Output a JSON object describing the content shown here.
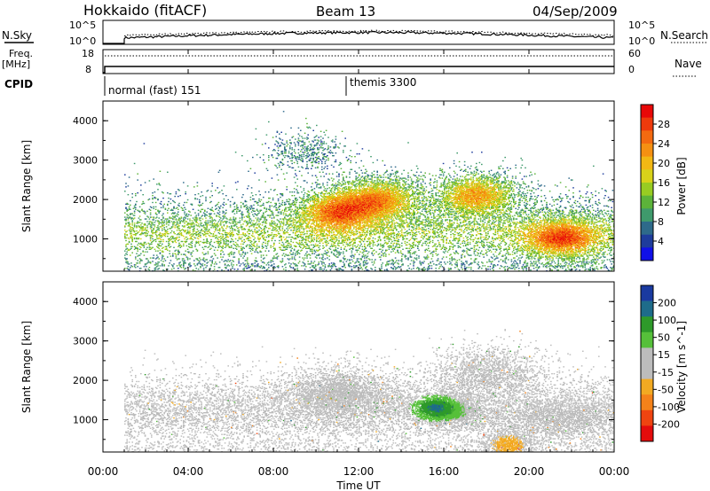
{
  "header": {
    "station": "Hokkaido (fitACF)",
    "beam": "Beam 13",
    "date": "04/Sep/2009"
  },
  "param_panels": {
    "nsky_label": "N.Sky",
    "nsky_ticks": [
      "10^5",
      "10^0"
    ],
    "nsearch_label": "N.Search",
    "nsearch_ticks": [
      "10^5",
      "10^0"
    ],
    "freq_label": "Freq.",
    "freq_unit": "[MHz]",
    "freq_ticks": [
      "18",
      "8"
    ],
    "nave_label": "Nave",
    "nave_ticks": [
      "60",
      "0"
    ],
    "cpid_label": "CPID",
    "cpid_segments": [
      {
        "label": "normal (fast) 151",
        "start_hour": 1.0
      },
      {
        "label": "themis 3300",
        "start_hour": 12.0
      }
    ]
  },
  "chart_data": [
    {
      "type": "heatmap",
      "title": "",
      "quantity": "Power",
      "ylabel": "Slant Range [km]",
      "xlabel": "",
      "ylim": [
        180,
        4500
      ],
      "yticks": [
        1000,
        2000,
        3000,
        4000
      ],
      "xlim": [
        0,
        24
      ],
      "colorbar": {
        "label": "Power [dB]",
        "ticks": [
          "28",
          "24",
          "20",
          "16",
          "12",
          "8",
          "4"
        ],
        "range": [
          0,
          32
        ],
        "colors": [
          "#1010e8",
          "#1e3c9c",
          "#2e6a8a",
          "#3f9a6c",
          "#5cb33a",
          "#98cc22",
          "#d8d21a",
          "#f2b814",
          "#f59012",
          "#f36a10",
          "#ee3a0c",
          "#e80808"
        ]
      },
      "data_coverage_hours": [
        1.0,
        24.0
      ],
      "notable_features": [
        {
          "hour": 11.0,
          "range_km": 1700,
          "power_db": 26
        },
        {
          "hour": 13.0,
          "range_km": 2000,
          "power_db": 24
        },
        {
          "hour": 17.5,
          "range_km": 2100,
          "power_db": 24
        },
        {
          "hour": 21.5,
          "range_km": 1000,
          "power_db": 24
        }
      ]
    },
    {
      "type": "heatmap",
      "title": "",
      "quantity": "Velocity",
      "ylabel": "Slant Range [km]",
      "xlabel": "Time UT",
      "ylim": [
        180,
        4500
      ],
      "yticks": [
        1000,
        2000,
        3000,
        4000
      ],
      "xlim": [
        0,
        24
      ],
      "xticks": [
        "00:00",
        "04:00",
        "08:00",
        "12:00",
        "16:00",
        "20:00",
        "00:00"
      ],
      "colorbar": {
        "label": "Velocity [m s^-1]",
        "ticks": [
          "200",
          "100",
          "50",
          "15",
          "-15",
          "-50",
          "-100",
          "-200"
        ],
        "range": [
          -250,
          250
        ],
        "colors": [
          "#e40c0c",
          "#ef4410",
          "#f4821a",
          "#f2aa22",
          "#bcbcbc",
          "#bcbcbc",
          "#56c03a",
          "#2e9a2a",
          "#1e6c8a",
          "#1a3aa0"
        ]
      },
      "data_coverage_hours": [
        1.0,
        24.0
      ],
      "notable_features": [
        {
          "hour": 15.5,
          "range_km": 1300,
          "velocity_ms": 150
        },
        {
          "hour": 16.5,
          "range_km": 1200,
          "velocity_ms": 40
        },
        {
          "hour": 19.0,
          "range_km": 350,
          "velocity_ms": -80
        }
      ]
    }
  ]
}
